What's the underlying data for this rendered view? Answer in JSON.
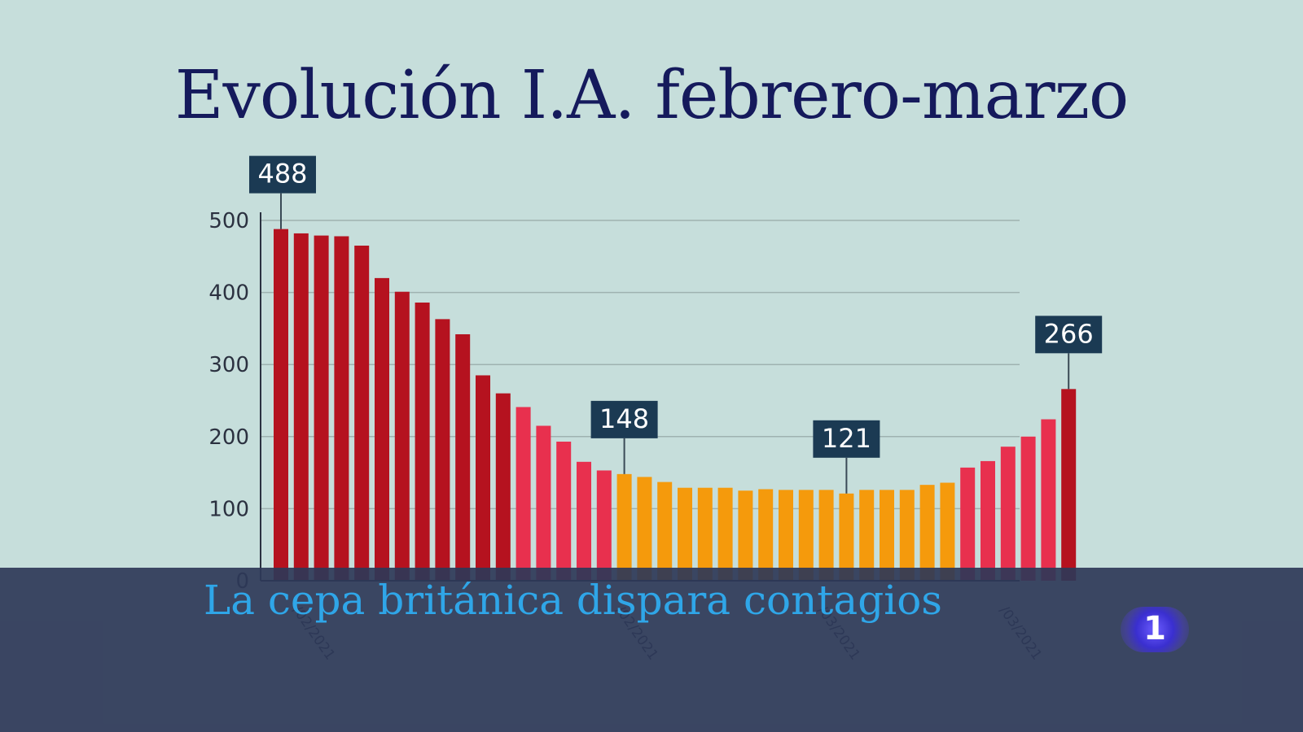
{
  "title": "Evolución I.A. febrero-marzo",
  "headline": "La cepa británica dispara contagios",
  "channel_logo": "1",
  "colors": {
    "background": "#c6dedb",
    "title": "#151a5c",
    "dark_red": "#b5121f",
    "pink_red": "#e8304e",
    "orange": "#f59a0c",
    "label_box": "#1b3a53",
    "grid": "#9fb2b0",
    "headline": "#2fa6e8"
  },
  "chart_data": {
    "type": "bar",
    "title": "Evolución I.A. febrero-marzo",
    "ylim": [
      0,
      500
    ],
    "yticks": [
      0,
      100,
      200,
      300,
      400,
      500
    ],
    "grid": true,
    "x_tick_labels": [
      "/02/2021",
      "/02/2021",
      "/03/2021",
      "/03/2021"
    ],
    "x_tick_label_indices": [
      0,
      16,
      26,
      35
    ],
    "values": [
      488,
      482,
      479,
      478,
      465,
      420,
      401,
      386,
      363,
      342,
      285,
      260,
      241,
      215,
      193,
      165,
      153,
      148,
      144,
      137,
      129,
      129,
      129,
      125,
      127,
      126,
      126,
      126,
      121,
      126,
      126,
      126,
      133,
      136,
      157,
      166,
      186,
      200,
      224,
      266
    ],
    "bar_colors": [
      "dark_red",
      "dark_red",
      "dark_red",
      "dark_red",
      "dark_red",
      "dark_red",
      "dark_red",
      "dark_red",
      "dark_red",
      "dark_red",
      "dark_red",
      "dark_red",
      "pink_red",
      "pink_red",
      "pink_red",
      "pink_red",
      "pink_red",
      "orange",
      "orange",
      "orange",
      "orange",
      "orange",
      "orange",
      "orange",
      "orange",
      "orange",
      "orange",
      "orange",
      "orange",
      "orange",
      "orange",
      "orange",
      "orange",
      "orange",
      "pink_red",
      "pink_red",
      "pink_red",
      "pink_red",
      "pink_red",
      "dark_red"
    ],
    "annotations": [
      {
        "index": 0,
        "label": "488"
      },
      {
        "index": 17,
        "label": "148"
      },
      {
        "index": 28,
        "label": "121"
      },
      {
        "index": 39,
        "label": "266"
      }
    ]
  }
}
